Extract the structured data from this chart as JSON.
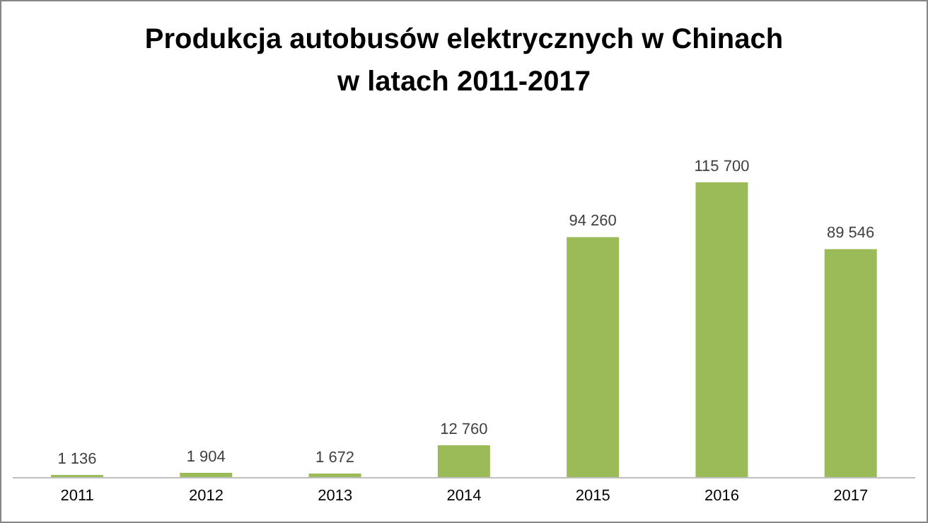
{
  "chart_data": {
    "type": "bar",
    "title": "Produkcja autobusów elektrycznych w Chinach\nw latach 2011-2017",
    "categories": [
      "2011",
      "2012",
      "2013",
      "2014",
      "2015",
      "2016",
      "2017"
    ],
    "values": [
      1136,
      1904,
      1672,
      12760,
      94260,
      115700,
      89546
    ],
    "value_labels": [
      "1 136",
      "1 904",
      "1 672",
      "12 760",
      "94 260",
      "115 700",
      "89 546"
    ],
    "color": "#9bbb59",
    "grid": false,
    "legend": false
  }
}
